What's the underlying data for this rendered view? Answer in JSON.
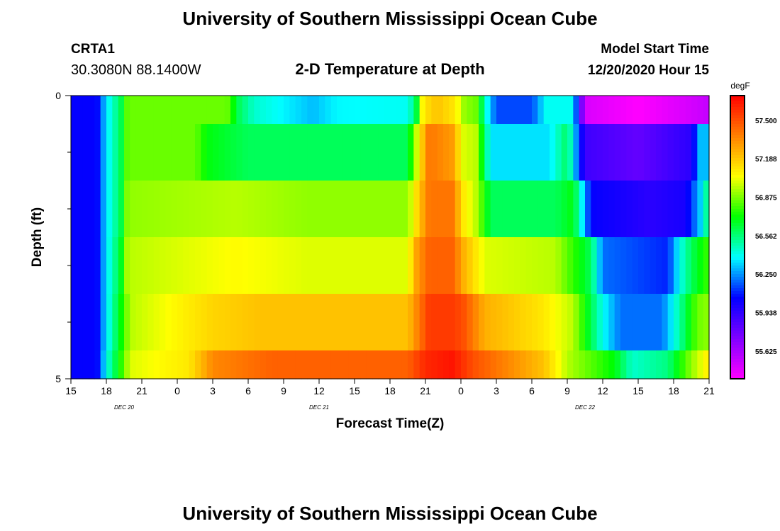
{
  "header": {
    "title": "University of Southern Mississippi Ocean Cube",
    "station_id": "CRTA1",
    "station_coords": "30.3080N 88.1400W",
    "subtitle": "2-D Temperature at Depth",
    "model_start_label": "Model Start Time",
    "model_start_value": "12/20/2020 Hour 15"
  },
  "footer": {
    "title": "University of Southern Mississippi Ocean Cube"
  },
  "chart_data": {
    "type": "heatmap",
    "title": "2-D Temperature at Depth",
    "xlabel": "Forecast Time(Z)",
    "ylabel": "Depth (ft)",
    "x_tick_labels": [
      "15",
      "18",
      "21",
      "0",
      "3",
      "6",
      "9",
      "12",
      "15",
      "18",
      "21",
      "0",
      "3",
      "6",
      "9",
      "12",
      "15",
      "18",
      "21"
    ],
    "x_hours_from_start": [
      0,
      3,
      6,
      9,
      12,
      15,
      18,
      21,
      24,
      27,
      30,
      33,
      36,
      39,
      42,
      45,
      48,
      51,
      54
    ],
    "date_labels": [
      {
        "label": "DEC 20",
        "at_hour": 4.5
      },
      {
        "label": "DEC 21",
        "at_hour": 21
      },
      {
        "label": "DEC 22",
        "at_hour": 43.5
      }
    ],
    "y_tick_labels": [
      "0",
      "5"
    ],
    "ylim": [
      0,
      5
    ],
    "xlim_hours": [
      0,
      54
    ],
    "depth_rows": [
      "0-0.5",
      "0.5-1.5",
      "1.5-2.5",
      "2.5-3.5",
      "3.5-4.5",
      "4.5-5"
    ],
    "z_unit": "degF",
    "colorbar_ticks": [
      "57.500",
      "57.188",
      "56.875",
      "56.562",
      "56.250",
      "55.938",
      "55.625"
    ],
    "colorbar_tick_values": [
      57.5,
      57.188,
      56.875,
      56.562,
      56.25,
      55.938,
      55.625
    ],
    "zlim": [
      55.4,
      57.7
    ],
    "colors": {
      "ramp": [
        "#ff00ff",
        "#8000ff",
        "#0000ff",
        "#00ffff",
        "#00ff00",
        "#ffff00",
        "#ff8000",
        "#ff0000"
      ]
    },
    "profiles": [
      {
        "knots": [
          [
            0,
            56.05
          ],
          [
            2.2,
            56.05
          ],
          [
            3,
            56.35
          ],
          [
            4.2,
            56.6
          ],
          [
            4.8,
            56.85
          ],
          [
            13.2,
            56.85
          ],
          [
            14.2,
            56.6
          ],
          [
            15.5,
            56.45
          ],
          [
            20.5,
            56.3
          ],
          [
            22.5,
            56.38
          ],
          [
            28.5,
            56.4
          ],
          [
            29.2,
            56.6
          ],
          [
            29.8,
            57.1
          ],
          [
            31,
            57.2
          ],
          [
            32.5,
            57.1
          ],
          [
            33.3,
            56.9
          ],
          [
            34.3,
            56.85
          ],
          [
            35.2,
            56.4
          ],
          [
            36,
            56.15
          ],
          [
            39,
            56.15
          ],
          [
            40.2,
            56.4
          ],
          [
            42.5,
            56.4
          ],
          [
            43.5,
            55.5
          ],
          [
            48,
            55.4
          ],
          [
            54,
            55.55
          ]
        ]
      },
      {
        "knots": [
          [
            0,
            56.05
          ],
          [
            2.2,
            56.05
          ],
          [
            3,
            56.35
          ],
          [
            4.2,
            56.6
          ],
          [
            4.8,
            56.85
          ],
          [
            10.5,
            56.85
          ],
          [
            11.5,
            56.7
          ],
          [
            15,
            56.6
          ],
          [
            24,
            56.6
          ],
          [
            28.5,
            56.6
          ],
          [
            29.5,
            57.1
          ],
          [
            30.3,
            57.4
          ],
          [
            32.3,
            57.3
          ],
          [
            33.2,
            57
          ],
          [
            34.3,
            56.95
          ],
          [
            35.5,
            56.35
          ],
          [
            40.5,
            56.35
          ],
          [
            42,
            56.6
          ],
          [
            43.5,
            55.9
          ],
          [
            48,
            55.8
          ],
          [
            52.5,
            55.95
          ],
          [
            53.2,
            56.3
          ],
          [
            54,
            56.3
          ]
        ]
      },
      {
        "knots": [
          [
            0,
            56.05
          ],
          [
            2.2,
            56.05
          ],
          [
            3,
            56.35
          ],
          [
            4.2,
            56.6
          ],
          [
            4.8,
            56.9
          ],
          [
            14,
            56.95
          ],
          [
            20,
            56.9
          ],
          [
            24,
            56.9
          ],
          [
            28.5,
            56.9
          ],
          [
            29.5,
            57.2
          ],
          [
            30.3,
            57.4
          ],
          [
            32.3,
            57.4
          ],
          [
            33.2,
            57.1
          ],
          [
            34.3,
            56.95
          ],
          [
            35.5,
            56.6
          ],
          [
            41,
            56.6
          ],
          [
            42.5,
            56.7
          ],
          [
            44,
            56.05
          ],
          [
            49,
            55.95
          ],
          [
            52,
            56
          ],
          [
            53.2,
            56.3
          ],
          [
            54,
            56.6
          ]
        ]
      },
      {
        "knots": [
          [
            0,
            56.05
          ],
          [
            2.2,
            56.05
          ],
          [
            3,
            56.35
          ],
          [
            4.2,
            56.65
          ],
          [
            4.8,
            56.95
          ],
          [
            14,
            57.05
          ],
          [
            20,
            57
          ],
          [
            28.5,
            57
          ],
          [
            29.3,
            57.3
          ],
          [
            30.3,
            57.45
          ],
          [
            32.3,
            57.45
          ],
          [
            33.2,
            57.25
          ],
          [
            35,
            57
          ],
          [
            41,
            56.95
          ],
          [
            44,
            56.6
          ],
          [
            45,
            56.2
          ],
          [
            50.5,
            56.1
          ],
          [
            51.5,
            56.4
          ],
          [
            52.5,
            56.6
          ],
          [
            54,
            56.8
          ]
        ]
      },
      {
        "knots": [
          [
            0,
            56.05
          ],
          [
            2.2,
            56.05
          ],
          [
            3,
            56.35
          ],
          [
            4.2,
            56.7
          ],
          [
            5,
            56.95
          ],
          [
            12,
            57.15
          ],
          [
            16,
            57.2
          ],
          [
            24,
            57.2
          ],
          [
            28.5,
            57.2
          ],
          [
            29.5,
            57.4
          ],
          [
            30.3,
            57.55
          ],
          [
            32.3,
            57.55
          ],
          [
            33.2,
            57.5
          ],
          [
            35,
            57.25
          ],
          [
            40,
            57.1
          ],
          [
            42.5,
            56.95
          ],
          [
            45,
            56.4
          ],
          [
            46.5,
            56.2
          ],
          [
            50,
            56.2
          ],
          [
            51.5,
            56.5
          ],
          [
            53,
            56.85
          ],
          [
            54,
            56.9
          ]
        ]
      },
      {
        "knots": [
          [
            0,
            56.05
          ],
          [
            2.2,
            56.05
          ],
          [
            3,
            56.4
          ],
          [
            4.2,
            56.75
          ],
          [
            5,
            57.0
          ],
          [
            10,
            57.1
          ],
          [
            12,
            57.35
          ],
          [
            17,
            57.45
          ],
          [
            24,
            57.45
          ],
          [
            28.5,
            57.45
          ],
          [
            30,
            57.6
          ],
          [
            32.3,
            57.65
          ],
          [
            34,
            57.5
          ],
          [
            40,
            57.2
          ],
          [
            42,
            56.95
          ],
          [
            46,
            56.7
          ],
          [
            47.5,
            56.45
          ],
          [
            50.5,
            56.55
          ],
          [
            52.5,
            56.9
          ],
          [
            54,
            57.1
          ]
        ]
      }
    ]
  }
}
